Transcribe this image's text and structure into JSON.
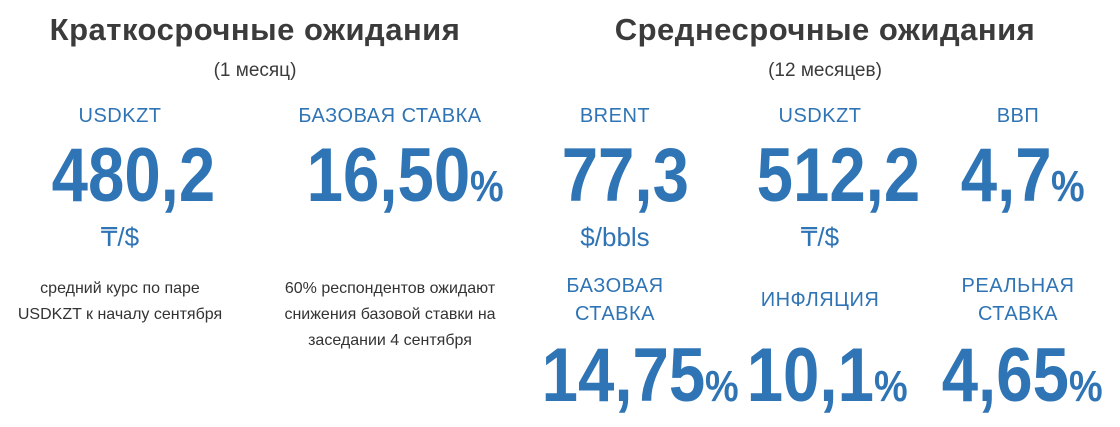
{
  "short_term": {
    "title": "Краткосрочные ожидания",
    "subtitle": "(1 месяц)",
    "items": [
      {
        "label": "USDKZT",
        "value": "480,2",
        "unit": "₸/$",
        "note": "средний курс по паре USDKZT к началу сентября"
      },
      {
        "label": "БАЗОВАЯ СТАВКА",
        "value": "16,50",
        "unit": "%",
        "note": "60% респондентов ожидают снижения базовой ставки на заседании 4 сентября"
      }
    ]
  },
  "medium_term": {
    "title": "Среднесрочные ожидания",
    "subtitle": "(12 месяцев)",
    "items": [
      {
        "label": "BRENT",
        "value": "77,3",
        "unit": "$/bbls"
      },
      {
        "label": "USDKZT",
        "value": "512,2",
        "unit": "₸/$"
      },
      {
        "label": "ВВП",
        "value": "4,7",
        "unit": "%"
      },
      {
        "label": "БАЗОВАЯ СТАВКА",
        "value": "14,75",
        "unit": "%"
      },
      {
        "label": "ИНФЛЯЦИЯ",
        "value": "10,1",
        "unit": "%"
      },
      {
        "label": "РЕАЛЬНАЯ СТАВКА",
        "value": "4,65",
        "unit": "%"
      }
    ]
  }
}
